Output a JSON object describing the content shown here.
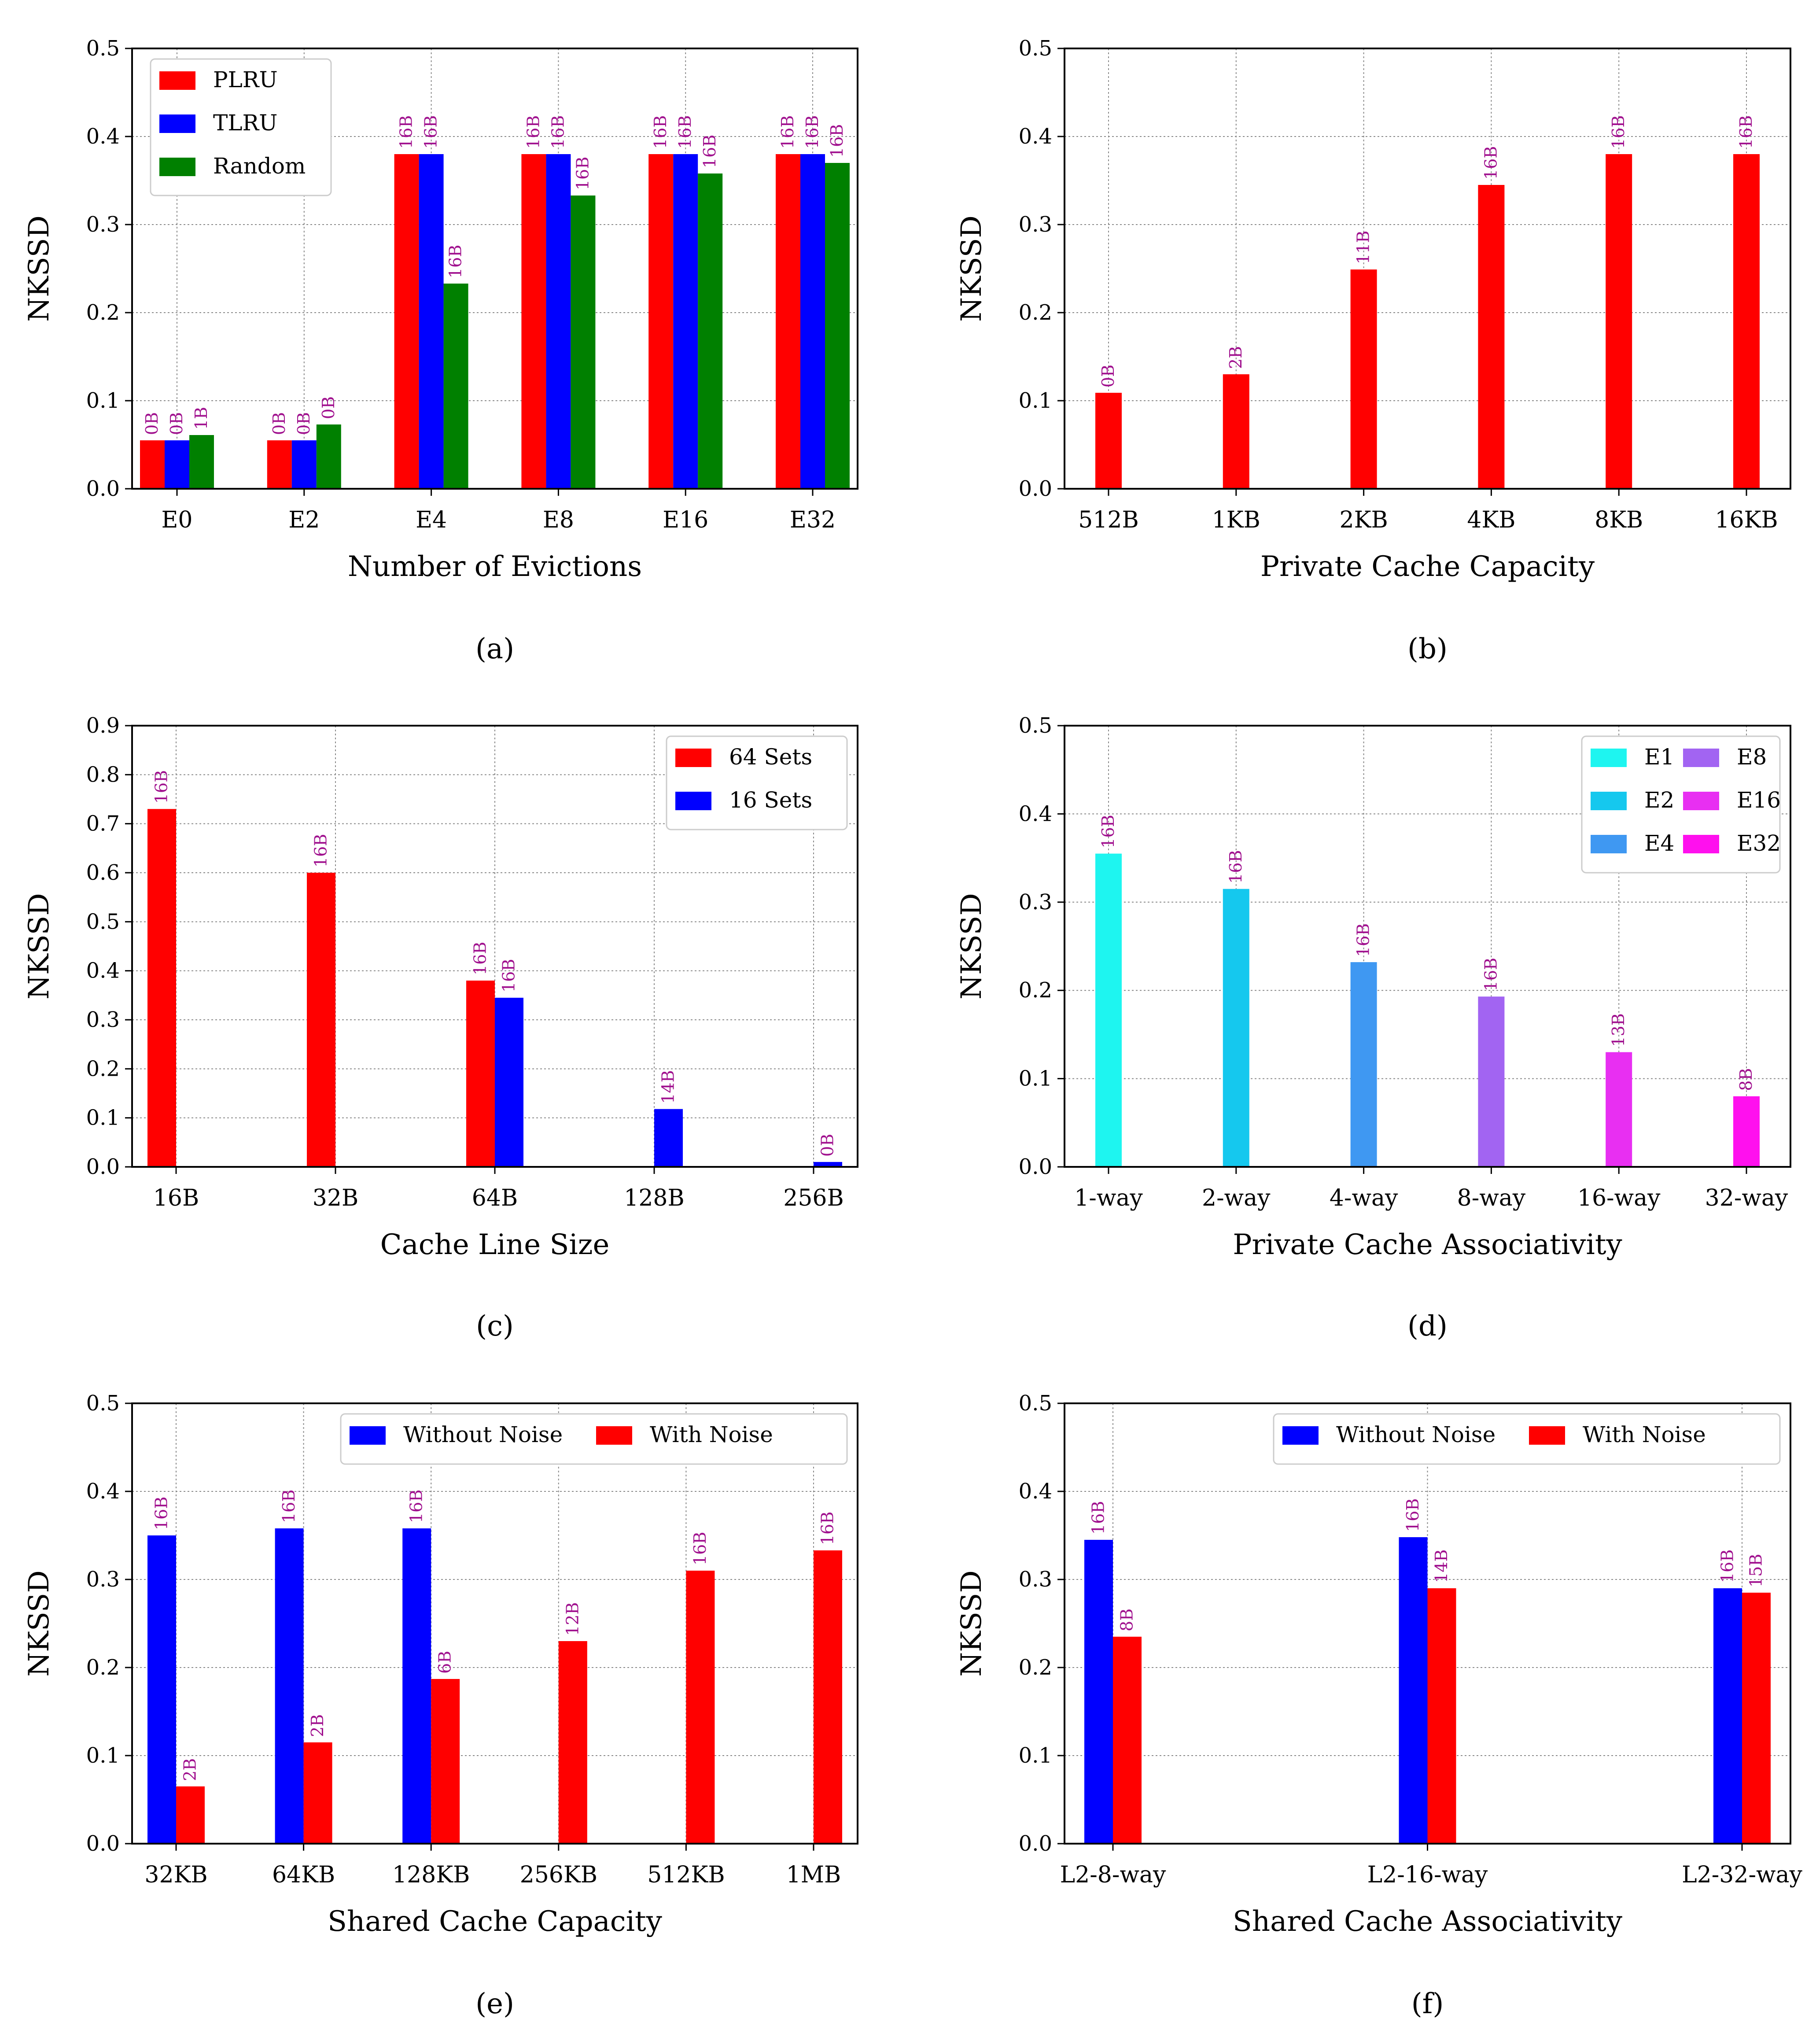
{
  "colors": {
    "red": "#ff0000",
    "blue": "#0000ff",
    "green": "#008000",
    "label": "#a0108e",
    "grid": "#888888",
    "axis": "#000000",
    "legend_border": "#cccccc"
  },
  "chart_data": [
    {
      "panel": "a",
      "caption": "(a)",
      "type": "bar",
      "xlabel": "Number of Evictions",
      "ylabel": "NKSSD",
      "ylim": [
        0,
        0.5
      ],
      "yticks": [
        "0.0",
        "0.1",
        "0.2",
        "0.3",
        "0.4",
        "0.5"
      ],
      "grid": true,
      "legend": "top-left",
      "categories": [
        "E0",
        "E2",
        "E4",
        "E8",
        "E16",
        "E32"
      ],
      "series": [
        {
          "name": "PLRU",
          "color": "#ff0000",
          "values": [
            0.055,
            0.055,
            0.38,
            0.38,
            0.38,
            0.38
          ],
          "labels": [
            "0B",
            "0B",
            "16B",
            "16B",
            "16B",
            "16B"
          ]
        },
        {
          "name": "TLRU",
          "color": "#0000ff",
          "values": [
            0.055,
            0.055,
            0.38,
            0.38,
            0.38,
            0.38
          ],
          "labels": [
            "0B",
            "0B",
            "16B",
            "16B",
            "16B",
            "16B"
          ]
        },
        {
          "name": "Random",
          "color": "#008000",
          "values": [
            0.061,
            0.073,
            0.233,
            0.333,
            0.358,
            0.37
          ],
          "labels": [
            "1B",
            "0B",
            "16B",
            "16B",
            "16B",
            "16B"
          ]
        }
      ]
    },
    {
      "panel": "b",
      "caption": "(b)",
      "type": "bar",
      "xlabel": "Private Cache Capacity",
      "ylabel": "NKSSD",
      "ylim": [
        0,
        0.5
      ],
      "yticks": [
        "0.0",
        "0.1",
        "0.2",
        "0.3",
        "0.4",
        "0.5"
      ],
      "grid": true,
      "legend": "none",
      "categories": [
        "512B",
        "1KB",
        "2KB",
        "4KB",
        "8KB",
        "16KB"
      ],
      "series": [
        {
          "name": "",
          "color": "#ff0000",
          "values": [
            0.109,
            0.13,
            0.249,
            0.345,
            0.38,
            0.38
          ],
          "labels": [
            "0B",
            "2B",
            "11B",
            "16B",
            "16B",
            "16B"
          ]
        }
      ]
    },
    {
      "panel": "c",
      "caption": "(c)",
      "type": "bar",
      "xlabel": "Cache Line Size",
      "ylabel": "NKSSD",
      "ylim": [
        0,
        0.9
      ],
      "yticks": [
        "0.0",
        "0.1",
        "0.2",
        "0.3",
        "0.4",
        "0.5",
        "0.6",
        "0.7",
        "0.8",
        "0.9"
      ],
      "grid": true,
      "legend": "top-right",
      "categories": [
        "16B",
        "32B",
        "64B",
        "128B",
        "256B"
      ],
      "series": [
        {
          "name": "64 Sets",
          "color": "#ff0000",
          "values": [
            0.73,
            0.6,
            0.38,
            null,
            null
          ],
          "labels": [
            "16B",
            "16B",
            "16B",
            "",
            ""
          ]
        },
        {
          "name": "16 Sets",
          "color": "#0000ff",
          "values": [
            null,
            null,
            0.345,
            0.118,
            0.01
          ],
          "labels": [
            "",
            "",
            "16B",
            "14B",
            "0B"
          ]
        }
      ]
    },
    {
      "panel": "d",
      "caption": "(d)",
      "type": "bar",
      "xlabel": "Private Cache Associativity",
      "ylabel": "NKSSD",
      "ylim": [
        0,
        0.5
      ],
      "yticks": [
        "0.0",
        "0.1",
        "0.2",
        "0.3",
        "0.4",
        "0.5"
      ],
      "grid": true,
      "legend": "top-right",
      "categories": [
        "1-way",
        "2-way",
        "4-way",
        "8-way",
        "16-way",
        "32-way"
      ],
      "series": [
        {
          "name": "",
          "color": "#ff0000",
          "values": [
            0.355,
            0.315,
            0.232,
            0.193,
            0.13,
            0.08
          ],
          "labels": [
            "16B",
            "16B",
            "16B",
            "16B",
            "13B",
            "8B"
          ],
          "bar_colors": [
            "#1ef5f0",
            "#15c8ee",
            "#3f98f2",
            "#a264f2",
            "#e82ff2",
            "#ff10ee"
          ]
        }
      ],
      "legend_items": [
        {
          "name": "E1",
          "color": "#1ef5f0"
        },
        {
          "name": "E8",
          "color": "#a264f2"
        },
        {
          "name": "E2",
          "color": "#15c8ee"
        },
        {
          "name": "E16",
          "color": "#e82ff2"
        },
        {
          "name": "E4",
          "color": "#3f98f2"
        },
        {
          "name": "E32",
          "color": "#ff10ee"
        }
      ]
    },
    {
      "panel": "e",
      "caption": "(e)",
      "type": "bar",
      "xlabel": "Shared Cache Capacity",
      "ylabel": "NKSSD",
      "ylim": [
        0,
        0.5
      ],
      "yticks": [
        "0.0",
        "0.1",
        "0.2",
        "0.3",
        "0.4",
        "0.5"
      ],
      "grid": true,
      "legend": "top-right",
      "categories": [
        "32KB",
        "64KB",
        "128KB",
        "256KB",
        "512KB",
        "1MB"
      ],
      "series": [
        {
          "name": "Without Noise",
          "color": "#0000ff",
          "values": [
            0.35,
            0.358,
            0.358,
            null,
            null,
            null
          ],
          "labels": [
            "16B",
            "16B",
            "16B",
            "",
            "",
            ""
          ]
        },
        {
          "name": "With Noise",
          "color": "#ff0000",
          "values": [
            0.065,
            0.115,
            0.187,
            0.23,
            0.31,
            0.333
          ],
          "labels": [
            "2B",
            "2B",
            "6B",
            "12B",
            "16B",
            "16B"
          ]
        }
      ]
    },
    {
      "panel": "f",
      "caption": "(f)",
      "type": "bar",
      "xlabel": "Shared Cache Associativity",
      "ylabel": "NKSSD",
      "ylim": [
        0,
        0.5
      ],
      "yticks": [
        "0.0",
        "0.1",
        "0.2",
        "0.3",
        "0.4",
        "0.5"
      ],
      "grid": true,
      "legend": "top-right",
      "categories": [
        "L2-8-way",
        "L2-16-way",
        "L2-32-way"
      ],
      "series": [
        {
          "name": "Without Noise",
          "color": "#0000ff",
          "values": [
            0.345,
            0.348,
            0.29
          ],
          "labels": [
            "16B",
            "16B",
            "16B"
          ]
        },
        {
          "name": "With Noise",
          "color": "#ff0000",
          "values": [
            0.235,
            0.29,
            0.285
          ],
          "labels": [
            "8B",
            "14B",
            "15B"
          ]
        }
      ]
    }
  ]
}
